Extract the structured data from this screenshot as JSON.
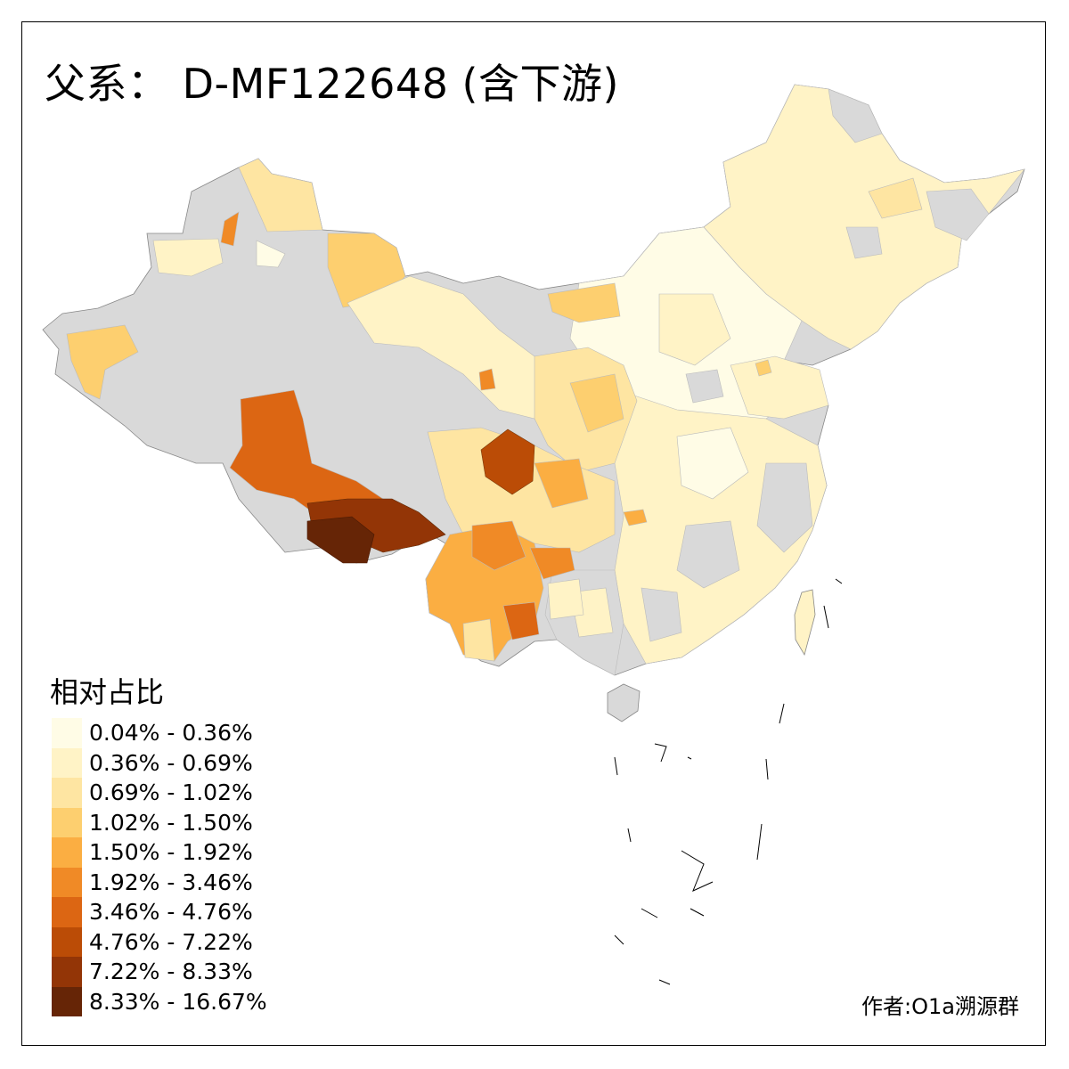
{
  "title": "父系： D-MF122648 (含下游)",
  "legend": {
    "title": "相对占比",
    "items": [
      {
        "label": "0.04% - 0.36%",
        "color": "#FFFCE6"
      },
      {
        "label": "0.36% - 0.69%",
        "color": "#FFF3C6"
      },
      {
        "label": "0.69% - 1.02%",
        "color": "#FEE5A2"
      },
      {
        "label": "1.02% - 1.50%",
        "color": "#FDCF6F"
      },
      {
        "label": "1.50% - 1.92%",
        "color": "#FBAE42"
      },
      {
        "label": "1.92% - 3.46%",
        "color": "#F08A26"
      },
      {
        "label": "3.46% - 4.76%",
        "color": "#DC6613"
      },
      {
        "label": "4.76% - 7.22%",
        "color": "#BB4C06"
      },
      {
        "label": "7.22% - 8.33%",
        "color": "#933506"
      },
      {
        "label": "8.33% - 16.67%",
        "color": "#662506"
      }
    ]
  },
  "no_data_color": "#D9D9D9",
  "credit": "作者:O1a溯源群"
}
